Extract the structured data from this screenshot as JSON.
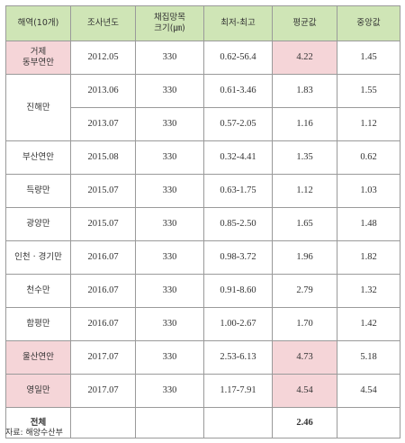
{
  "table": {
    "headers": [
      "해역(10개)",
      "조사년도",
      "채집망목\n크기(㎛)",
      "최저-최고",
      "평균값",
      "중앙값"
    ],
    "rows": [
      {
        "region": "거제\n동부연안",
        "year": "2012.05",
        "mesh": "330",
        "range": "0.62-56.4",
        "mean": "4.22",
        "median": "1.45",
        "region_hl": true,
        "mean_hl": true
      },
      {
        "region": "진해만",
        "year": "2013.06",
        "mesh": "330",
        "range": "0.61-3.46",
        "mean": "1.83",
        "median": "1.55"
      },
      {
        "region": "",
        "year": "2013.07",
        "mesh": "330",
        "range": "0.57-2.05",
        "mean": "1.16",
        "median": "1.12"
      },
      {
        "region": "부산연안",
        "year": "2015.08",
        "mesh": "330",
        "range": "0.32-4.41",
        "mean": "1.35",
        "median": "0.62"
      },
      {
        "region": "득량만",
        "year": "2015.07",
        "mesh": "330",
        "range": "0.63-1.75",
        "mean": "1.12",
        "median": "1.03"
      },
      {
        "region": "광양만",
        "year": "2015.07",
        "mesh": "330",
        "range": "0.85-2.50",
        "mean": "1.65",
        "median": "1.48"
      },
      {
        "region": "인천 · 경기만",
        "year": "2016.07",
        "mesh": "330",
        "range": "0.98-3.72",
        "mean": "1.96",
        "median": "1.82"
      },
      {
        "region": "천수만",
        "year": "2016.07",
        "mesh": "330",
        "range": "0.91-8.60",
        "mean": "2.79",
        "median": "1.32"
      },
      {
        "region": "함평만",
        "year": "2016.07",
        "mesh": "330",
        "range": "1.00-2.67",
        "mean": "1.70",
        "median": "1.42"
      },
      {
        "region": "울산연안",
        "year": "2017.07",
        "mesh": "330",
        "range": "2.53-6.13",
        "mean": "4.73",
        "median": "5.18",
        "region_hl": true,
        "mean_hl": true
      },
      {
        "region": "영일만",
        "year": "2017.07",
        "mesh": "330",
        "range": "1.17-7.91",
        "mean": "4.54",
        "median": "4.54",
        "region_hl": true,
        "mean_hl": true
      }
    ],
    "total": {
      "label": "전체",
      "mean": "2.46"
    }
  },
  "source": "자료: 해양수산부",
  "colors": {
    "header_bg": "#cfe5b6",
    "highlight_bg": "#f5d5d8",
    "border": "#9a9a9a"
  }
}
